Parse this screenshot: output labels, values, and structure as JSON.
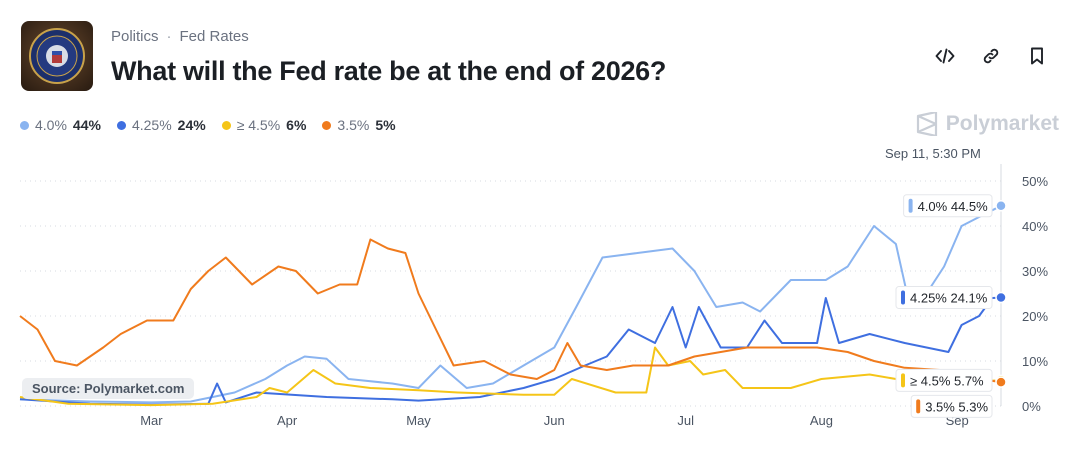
{
  "header": {
    "category": "Politics",
    "separator": "·",
    "tag": "Fed Rates",
    "title": "What will the Fed rate be at the end of 2026?",
    "thumbnail_icon": "federal-reserve-seal"
  },
  "actions": [
    {
      "name": "embed-code-icon"
    },
    {
      "name": "copy-link-icon"
    },
    {
      "name": "bookmark-icon"
    }
  ],
  "legend": [
    {
      "label": "4.0%",
      "value": "44%",
      "color": "#8ab4f0"
    },
    {
      "label": "4.25%",
      "value": "24%",
      "color": "#3f6fe0"
    },
    {
      "label": "≥ 4.5%",
      "value": "6%",
      "color": "#f5c518"
    },
    {
      "label": "3.5%",
      "value": "5%",
      "color": "#f07b1d"
    }
  ],
  "brand": "Polymarket",
  "timestamp": "Sep 11, 5:30 PM",
  "source": "Source: Polymarket.com",
  "chart_data": {
    "type": "line",
    "x_domain": [
      "2025-01-30",
      "2025-09-11"
    ],
    "ylim": [
      0,
      50
    ],
    "yticks": [
      "50%",
      "40%",
      "30%",
      "20%",
      "10%",
      "0%"
    ],
    "ytick_values": [
      50,
      40,
      30,
      20,
      10,
      0
    ],
    "xticks": [
      "Mar",
      "Apr",
      "May",
      "Jun",
      "Jul",
      "Aug",
      "Sep"
    ],
    "xtick_dates": [
      "2025-03-01",
      "2025-04-01",
      "2025-05-01",
      "2025-06-01",
      "2025-07-01",
      "2025-08-01",
      "2025-09-01"
    ],
    "grid": true,
    "series": [
      {
        "name": "4.0%",
        "color": "#8ab4f0",
        "end_label": "4.0%",
        "end_value": "44.5%",
        "points": [
          [
            "2025-01-30",
            1.5
          ],
          [
            "2025-02-15",
            1
          ],
          [
            "2025-03-01",
            0.8
          ],
          [
            "2025-03-10",
            1
          ],
          [
            "2025-03-20",
            3
          ],
          [
            "2025-03-27",
            6
          ],
          [
            "2025-04-01",
            9
          ],
          [
            "2025-04-05",
            11
          ],
          [
            "2025-04-10",
            10.5
          ],
          [
            "2025-04-15",
            6
          ],
          [
            "2025-04-25",
            5
          ],
          [
            "2025-05-01",
            4
          ],
          [
            "2025-05-06",
            9
          ],
          [
            "2025-05-12",
            4
          ],
          [
            "2025-05-18",
            5
          ],
          [
            "2025-05-25",
            9
          ],
          [
            "2025-06-01",
            13
          ],
          [
            "2025-06-06",
            22
          ],
          [
            "2025-06-12",
            33
          ],
          [
            "2025-06-20",
            34
          ],
          [
            "2025-06-28",
            35
          ],
          [
            "2025-07-03",
            30
          ],
          [
            "2025-07-08",
            22
          ],
          [
            "2025-07-14",
            23
          ],
          [
            "2025-07-18",
            21
          ],
          [
            "2025-07-25",
            28
          ],
          [
            "2025-08-02",
            28
          ],
          [
            "2025-08-07",
            31
          ],
          [
            "2025-08-13",
            40
          ],
          [
            "2025-08-18",
            36
          ],
          [
            "2025-08-21",
            23
          ],
          [
            "2025-08-25",
            25
          ],
          [
            "2025-08-29",
            31
          ],
          [
            "2025-09-02",
            40
          ],
          [
            "2025-09-06",
            42
          ],
          [
            "2025-09-11",
            44.5
          ]
        ]
      },
      {
        "name": "4.25%",
        "color": "#3f6fe0",
        "end_label": "4.25%",
        "end_value": "24.1%",
        "points": [
          [
            "2025-01-30",
            1.5
          ],
          [
            "2025-02-15",
            0.5
          ],
          [
            "2025-03-01",
            0.3
          ],
          [
            "2025-03-14",
            0.5
          ],
          [
            "2025-03-16",
            5
          ],
          [
            "2025-03-18",
            0.8
          ],
          [
            "2025-03-25",
            3
          ],
          [
            "2025-04-10",
            2
          ],
          [
            "2025-04-25",
            1.5
          ],
          [
            "2025-05-01",
            1.2
          ],
          [
            "2025-05-15",
            2
          ],
          [
            "2025-05-25",
            4
          ],
          [
            "2025-06-01",
            6
          ],
          [
            "2025-06-08",
            9
          ],
          [
            "2025-06-13",
            11
          ],
          [
            "2025-06-18",
            17
          ],
          [
            "2025-06-24",
            14
          ],
          [
            "2025-06-28",
            22
          ],
          [
            "2025-07-01",
            13
          ],
          [
            "2025-07-04",
            22
          ],
          [
            "2025-07-09",
            13
          ],
          [
            "2025-07-15",
            13
          ],
          [
            "2025-07-19",
            19
          ],
          [
            "2025-07-23",
            14
          ],
          [
            "2025-07-31",
            14
          ],
          [
            "2025-08-02",
            24
          ],
          [
            "2025-08-05",
            14
          ],
          [
            "2025-08-12",
            16
          ],
          [
            "2025-08-20",
            14
          ],
          [
            "2025-08-30",
            12
          ],
          [
            "2025-09-02",
            18
          ],
          [
            "2025-09-06",
            20
          ],
          [
            "2025-09-09",
            24
          ],
          [
            "2025-09-11",
            24.1
          ]
        ]
      },
      {
        "name": "≥ 4.5%",
        "color": "#f5c518",
        "end_label": "≥ 4.5%",
        "end_value": "5.7%",
        "points": [
          [
            "2025-01-30",
            2
          ],
          [
            "2025-02-10",
            0.5
          ],
          [
            "2025-03-01",
            0.2
          ],
          [
            "2025-03-15",
            0.5
          ],
          [
            "2025-03-25",
            2
          ],
          [
            "2025-03-28",
            4
          ],
          [
            "2025-04-01",
            3
          ],
          [
            "2025-04-07",
            8
          ],
          [
            "2025-04-12",
            5
          ],
          [
            "2025-04-20",
            4
          ],
          [
            "2025-05-01",
            3.5
          ],
          [
            "2025-05-10",
            3
          ],
          [
            "2025-05-25",
            2.5
          ],
          [
            "2025-06-01",
            2.5
          ],
          [
            "2025-06-05",
            6
          ],
          [
            "2025-06-15",
            3
          ],
          [
            "2025-06-22",
            3
          ],
          [
            "2025-06-24",
            13
          ],
          [
            "2025-06-27",
            9
          ],
          [
            "2025-07-02",
            10
          ],
          [
            "2025-07-05",
            7
          ],
          [
            "2025-07-10",
            8
          ],
          [
            "2025-07-14",
            4
          ],
          [
            "2025-07-25",
            4
          ],
          [
            "2025-08-01",
            6
          ],
          [
            "2025-08-12",
            7
          ],
          [
            "2025-08-18",
            6
          ],
          [
            "2025-08-25",
            4.5
          ],
          [
            "2025-09-05",
            5.5
          ],
          [
            "2025-09-11",
            5.7
          ]
        ]
      },
      {
        "name": "3.5%",
        "color": "#f07b1d",
        "end_label": "3.5%",
        "end_value": "5.3%",
        "points": [
          [
            "2025-01-30",
            20
          ],
          [
            "2025-02-03",
            17
          ],
          [
            "2025-02-07",
            10
          ],
          [
            "2025-02-12",
            9
          ],
          [
            "2025-02-18",
            13
          ],
          [
            "2025-02-22",
            16
          ],
          [
            "2025-02-28",
            19
          ],
          [
            "2025-03-06",
            19
          ],
          [
            "2025-03-10",
            26
          ],
          [
            "2025-03-14",
            30
          ],
          [
            "2025-03-18",
            33
          ],
          [
            "2025-03-24",
            27
          ],
          [
            "2025-03-30",
            31
          ],
          [
            "2025-04-03",
            30
          ],
          [
            "2025-04-08",
            25
          ],
          [
            "2025-04-13",
            27
          ],
          [
            "2025-04-17",
            27
          ],
          [
            "2025-04-20",
            37
          ],
          [
            "2025-04-24",
            35
          ],
          [
            "2025-04-28",
            34
          ],
          [
            "2025-05-01",
            25
          ],
          [
            "2025-05-05",
            17
          ],
          [
            "2025-05-09",
            9
          ],
          [
            "2025-05-16",
            10
          ],
          [
            "2025-05-22",
            7
          ],
          [
            "2025-05-28",
            6
          ],
          [
            "2025-06-01",
            8
          ],
          [
            "2025-06-04",
            14
          ],
          [
            "2025-06-07",
            9
          ],
          [
            "2025-06-13",
            8
          ],
          [
            "2025-06-19",
            9
          ],
          [
            "2025-06-27",
            9
          ],
          [
            "2025-07-03",
            11
          ],
          [
            "2025-07-15",
            13
          ],
          [
            "2025-07-31",
            13
          ],
          [
            "2025-08-07",
            12
          ],
          [
            "2025-08-13",
            10
          ],
          [
            "2025-08-20",
            8.5
          ],
          [
            "2025-08-28",
            8
          ],
          [
            "2025-09-06",
            6
          ],
          [
            "2025-09-11",
            5.3
          ]
        ]
      }
    ]
  }
}
